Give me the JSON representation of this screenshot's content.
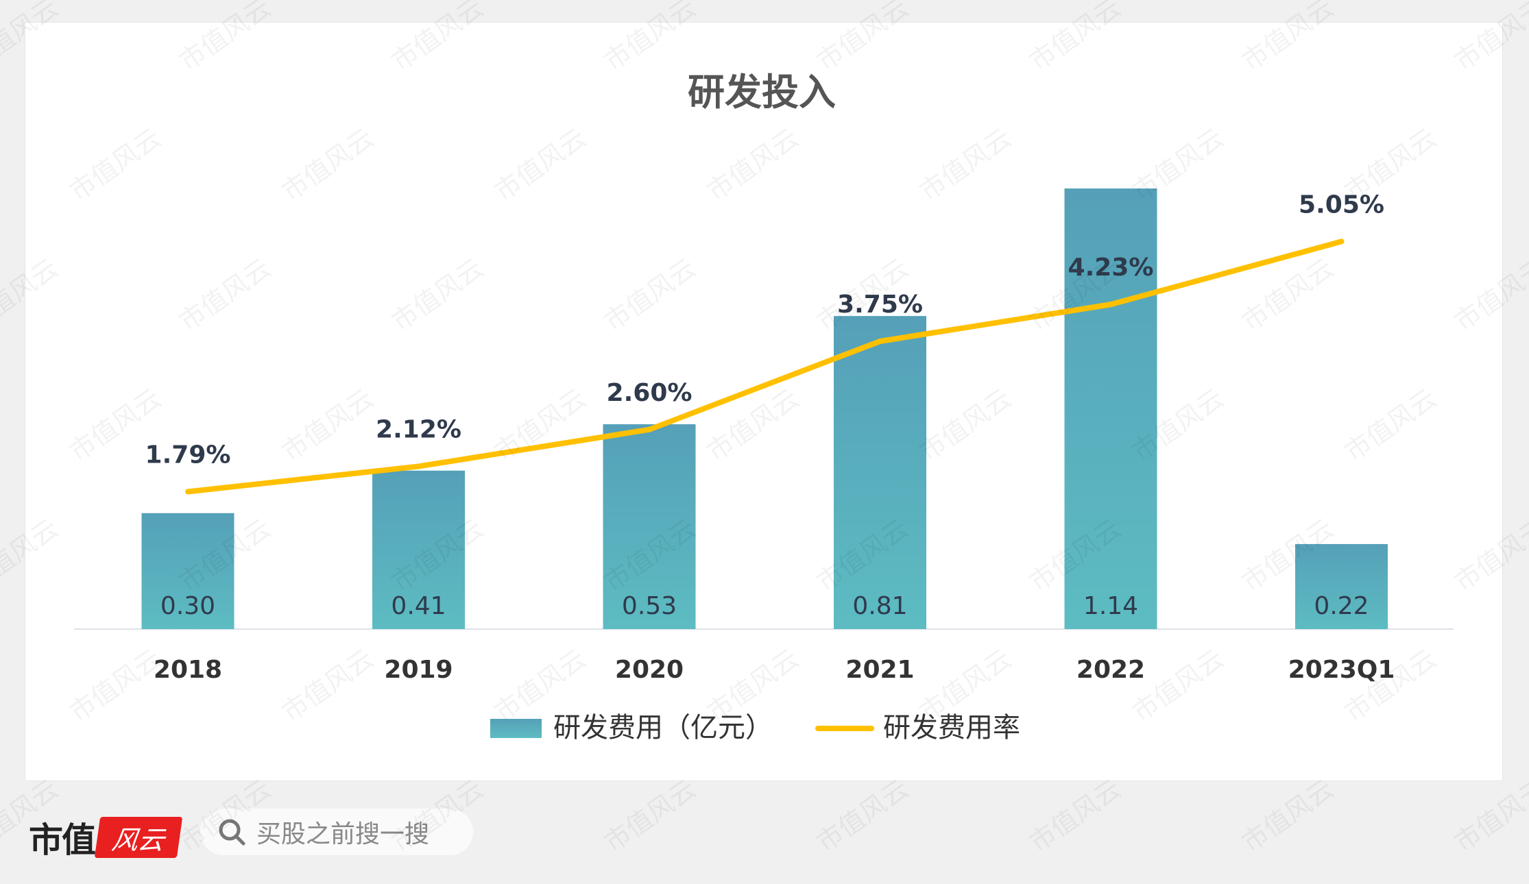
{
  "watermark": "市值风云",
  "footer": {
    "logo_text": "市值",
    "logo_mark": "风云",
    "search_placeholder": "买股之前搜一搜"
  },
  "colors": {
    "bar_top": "#55a0b8",
    "bar_bottom": "#5dbcc2",
    "line": "#ffc000",
    "label": "#2f3a4c"
  },
  "chart_data": {
    "type": "bar+line",
    "title": "研发投入",
    "categories": [
      "2018",
      "2019",
      "2020",
      "2021",
      "2022",
      "2023Q1"
    ],
    "series": [
      {
        "name": "研发费用（亿元）",
        "type": "bar",
        "values": [
          0.3,
          0.41,
          0.53,
          0.81,
          1.14,
          0.22
        ],
        "labels": [
          "0.30",
          "0.41",
          "0.53",
          "0.81",
          "1.14",
          "0.22"
        ]
      },
      {
        "name": "研发费用率",
        "type": "line",
        "values": [
          1.79,
          2.12,
          2.6,
          3.75,
          4.23,
          5.05
        ],
        "labels": [
          "1.79%",
          "2.12%",
          "2.60%",
          "3.75%",
          "4.23%",
          "5.05%"
        ]
      }
    ],
    "legend": "bottom",
    "grid": false
  }
}
